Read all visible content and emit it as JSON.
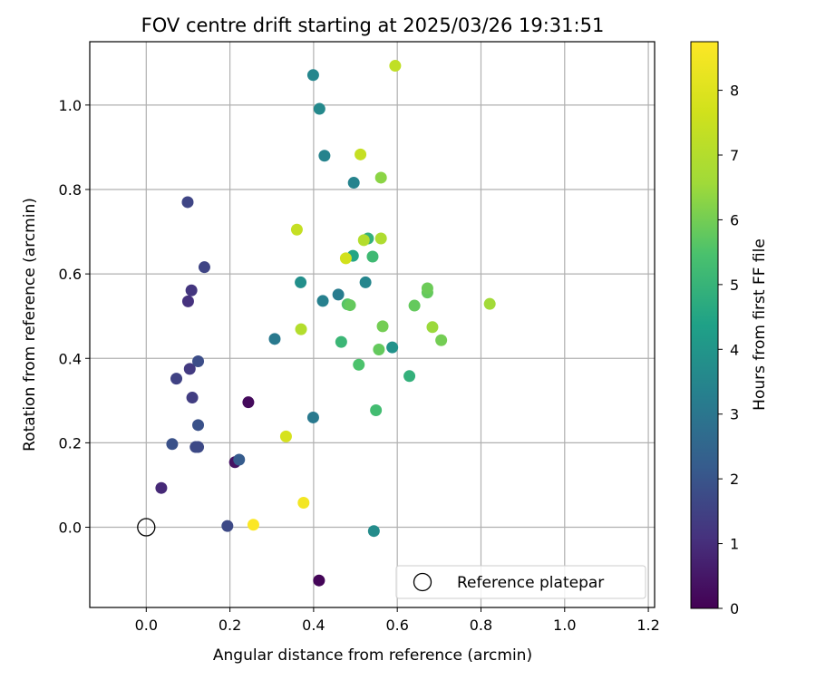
{
  "chart_data": {
    "type": "scatter",
    "title": "FOV centre drift starting at 2025/03/26 19:31:51",
    "xlabel": "Angular distance from reference (arcmin)",
    "ylabel": "Rotation from reference (arcmin)",
    "xlim": [
      -0.135,
      1.215
    ],
    "ylim": [
      -0.19,
      1.15
    ],
    "xticks": [
      0.0,
      0.2,
      0.4,
      0.6,
      0.8,
      1.0,
      1.2
    ],
    "xtick_labels": [
      "0.0",
      "0.2",
      "0.4",
      "0.6",
      "0.8",
      "1.0",
      "1.2"
    ],
    "yticks": [
      0.0,
      0.2,
      0.4,
      0.6,
      0.8,
      1.0
    ],
    "ytick_labels": [
      "0.0",
      "0.2",
      "0.4",
      "0.6",
      "0.8",
      "1.0"
    ],
    "grid": true,
    "colorbar": {
      "label": "Hours from first FF file",
      "range": [
        0,
        8.75
      ],
      "ticks": [
        0,
        1,
        2,
        3,
        4,
        5,
        6,
        7,
        8
      ],
      "tick_labels": [
        "0",
        "1",
        "2",
        "3",
        "4",
        "5",
        "6",
        "7",
        "8"
      ],
      "colormap": "viridis"
    },
    "reference": {
      "label": "Reference platepar",
      "x": 0.0,
      "y": 0.0
    },
    "legend_position": "lower-right",
    "points": [
      {
        "x": 0.413,
        "y": -0.126,
        "c": 0.1
      },
      {
        "x": 0.244,
        "y": 0.296,
        "c": 0.2
      },
      {
        "x": 0.212,
        "y": 0.154,
        "c": 0.4
      },
      {
        "x": 0.036,
        "y": 0.093,
        "c": 0.9
      },
      {
        "x": 0.1,
        "y": 0.535,
        "c": 1.1
      },
      {
        "x": 0.108,
        "y": 0.561,
        "c": 1.2
      },
      {
        "x": 0.104,
        "y": 0.375,
        "c": 1.3
      },
      {
        "x": 0.11,
        "y": 0.307,
        "c": 1.4
      },
      {
        "x": 0.072,
        "y": 0.352,
        "c": 1.5
      },
      {
        "x": 0.099,
        "y": 0.77,
        "c": 1.6
      },
      {
        "x": 0.139,
        "y": 0.616,
        "c": 1.6
      },
      {
        "x": 0.118,
        "y": 0.19,
        "c": 1.7
      },
      {
        "x": 0.124,
        "y": 0.19,
        "c": 1.7
      },
      {
        "x": 0.194,
        "y": 0.003,
        "c": 1.7
      },
      {
        "x": 0.124,
        "y": 0.393,
        "c": 1.8
      },
      {
        "x": 0.124,
        "y": 0.242,
        "c": 1.9
      },
      {
        "x": 0.062,
        "y": 0.197,
        "c": 1.9
      },
      {
        "x": 0.222,
        "y": 0.16,
        "c": 2.2
      },
      {
        "x": 0.307,
        "y": 0.446,
        "c": 3.1
      },
      {
        "x": 0.399,
        "y": 0.26,
        "c": 3.1
      },
      {
        "x": 0.459,
        "y": 0.551,
        "c": 3.2
      },
      {
        "x": 0.422,
        "y": 0.536,
        "c": 3.3
      },
      {
        "x": 0.426,
        "y": 0.88,
        "c": 3.4
      },
      {
        "x": 0.496,
        "y": 0.816,
        "c": 3.4
      },
      {
        "x": 0.399,
        "y": 1.071,
        "c": 3.5
      },
      {
        "x": 0.414,
        "y": 0.991,
        "c": 3.6
      },
      {
        "x": 0.524,
        "y": 0.58,
        "c": 3.5
      },
      {
        "x": 0.544,
        "y": -0.009,
        "c": 3.7
      },
      {
        "x": 0.588,
        "y": 0.426,
        "c": 3.9
      },
      {
        "x": 0.369,
        "y": 0.58,
        "c": 3.8
      },
      {
        "x": 0.494,
        "y": 0.643,
        "c": 4.5
      },
      {
        "x": 0.53,
        "y": 0.684,
        "c": 4.9
      },
      {
        "x": 0.629,
        "y": 0.358,
        "c": 4.9
      },
      {
        "x": 0.466,
        "y": 0.439,
        "c": 5.1
      },
      {
        "x": 0.541,
        "y": 0.641,
        "c": 5.2
      },
      {
        "x": 0.549,
        "y": 0.277,
        "c": 5.3
      },
      {
        "x": 0.508,
        "y": 0.385,
        "c": 5.5
      },
      {
        "x": 0.481,
        "y": 0.528,
        "c": 5.6
      },
      {
        "x": 0.556,
        "y": 0.421,
        "c": 5.8
      },
      {
        "x": 0.641,
        "y": 0.525,
        "c": 5.8
      },
      {
        "x": 0.672,
        "y": 0.556,
        "c": 5.8
      },
      {
        "x": 0.672,
        "y": 0.566,
        "c": 5.9
      },
      {
        "x": 0.487,
        "y": 0.526,
        "c": 5.8
      },
      {
        "x": 0.565,
        "y": 0.476,
        "c": 6.0
      },
      {
        "x": 0.705,
        "y": 0.443,
        "c": 6.0
      },
      {
        "x": 0.561,
        "y": 0.828,
        "c": 6.3
      },
      {
        "x": 0.684,
        "y": 0.474,
        "c": 6.5
      },
      {
        "x": 0.821,
        "y": 0.529,
        "c": 6.6
      },
      {
        "x": 0.561,
        "y": 0.684,
        "c": 6.9
      },
      {
        "x": 0.52,
        "y": 0.68,
        "c": 7.0
      },
      {
        "x": 0.37,
        "y": 0.469,
        "c": 7.0
      },
      {
        "x": 0.595,
        "y": 1.093,
        "c": 7.3
      },
      {
        "x": 0.512,
        "y": 0.883,
        "c": 7.4
      },
      {
        "x": 0.36,
        "y": 0.705,
        "c": 7.4
      },
      {
        "x": 0.477,
        "y": 0.637,
        "c": 7.7
      },
      {
        "x": 0.334,
        "y": 0.215,
        "c": 7.8
      },
      {
        "x": 0.376,
        "y": 0.058,
        "c": 8.5
      },
      {
        "x": 0.256,
        "y": 0.006,
        "c": 8.7
      }
    ]
  }
}
